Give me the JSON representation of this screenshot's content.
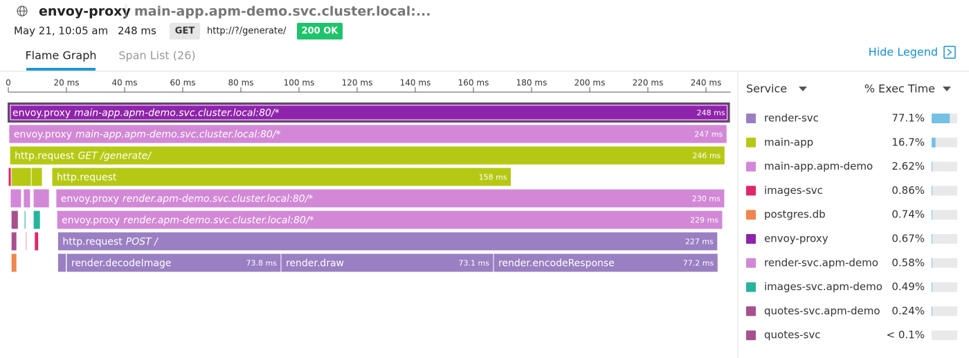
{
  "header": {
    "service": "envoy-proxy",
    "resource": "main-app.apm-demo.svc.cluster.local:...",
    "date": "May 21, 10:05 am",
    "duration": "248 ms",
    "method": "GET",
    "url": "http://?/generate/",
    "status": "200 OK"
  },
  "tabs": [
    "Flame Graph",
    "Span List (26)"
  ],
  "hide_legend": "Hide Legend",
  "flame_graph": {
    "xlim": [
      0,
      248
    ],
    "xticks": [
      {
        "value": 0,
        "label": "0"
      },
      {
        "value": 20,
        "label": "20 ms"
      },
      {
        "value": 40,
        "label": "40 ms"
      },
      {
        "value": 60,
        "label": "60 ms"
      },
      {
        "value": 80,
        "label": "80 ms"
      },
      {
        "value": 100,
        "label": "100 ms"
      },
      {
        "value": 120,
        "label": "120 ms"
      },
      {
        "value": 140,
        "label": "140 ms"
      },
      {
        "value": 160,
        "label": "160 ms"
      },
      {
        "value": 180,
        "label": "180 ms"
      },
      {
        "value": 200,
        "label": "200 ms"
      },
      {
        "value": 220,
        "label": "220 ms"
      },
      {
        "value": 240,
        "label": "240 ms"
      }
    ],
    "rows": [
      [
        {
          "name": "envoy.proxy",
          "resource": "main-app.apm-demo.svc.cluster.local:80/*",
          "start": 0,
          "duration": 248,
          "duration_label": "248 ms",
          "color": "#8e24aa",
          "selected": true
        }
      ],
      [
        {
          "name": "envoy.proxy",
          "resource": "main-app.apm-demo.svc.cluster.local:80/*",
          "start": 0.2,
          "duration": 247,
          "duration_label": "247 ms",
          "color": "#d288d6"
        }
      ],
      [
        {
          "name": "http.request",
          "resource": "GET /generate/",
          "start": 0.5,
          "duration": 246,
          "duration_label": "246 ms",
          "color": "#b5c914"
        }
      ],
      [
        {
          "start": 0,
          "duration": 1,
          "color": "#e0266a"
        },
        {
          "start": 1,
          "duration": 7.6,
          "color": "#b5c914"
        },
        {
          "start": 7.9,
          "duration": 3.8,
          "color": "#b5c914"
        },
        {
          "name": "http.request",
          "start": 15,
          "duration": 158,
          "duration_label": "158 ms",
          "color": "#b5c914"
        }
      ],
      [
        {
          "start": 0.7,
          "duration": 3.8,
          "color": "#d288d6"
        },
        {
          "start": 5.2,
          "duration": 2.4,
          "color": "#d288d6"
        },
        {
          "start": 8.6,
          "duration": 5.5,
          "color": "#d288d6"
        },
        {
          "name": "envoy.proxy",
          "resource": "render.apm-demo.svc.cluster.local:80/*",
          "start": 16.4,
          "duration": 230,
          "duration_label": "230 ms",
          "color": "#d288d6"
        }
      ],
      [
        {
          "start": 1,
          "duration": 2.4,
          "color": "#a6508e"
        },
        {
          "start": 5.5,
          "duration": 0.5,
          "color": "#26b59b"
        },
        {
          "start": 8.6,
          "duration": 2.4,
          "color": "#26b59b"
        },
        {
          "name": "envoy.proxy",
          "resource": "render.apm-demo.svc.cluster.local:80/*",
          "start": 16.7,
          "duration": 229,
          "duration_label": "229 ms",
          "color": "#d288d6"
        }
      ],
      [
        {
          "start": 1,
          "duration": 1.9,
          "color": "#a6508e"
        },
        {
          "start": 6,
          "duration": 0.3,
          "color": "#e0266a"
        },
        {
          "start": 9,
          "duration": 1.4,
          "color": "#e0266a"
        },
        {
          "name": "http.request",
          "resource": "POST /",
          "start": 17,
          "duration": 227,
          "duration_label": "227 ms",
          "color": "#9a7fc2"
        }
      ],
      [
        {
          "start": 1,
          "duration": 1.9,
          "color": "#f0854e"
        },
        {
          "start": 17,
          "duration": 2.9,
          "color": "#9a7fc2"
        },
        {
          "name": "render.decodeImage",
          "start": 20,
          "duration": 73.8,
          "duration_label": "73.8 ms",
          "color": "#9a7fc2"
        },
        {
          "name": "render.draw",
          "start": 93.8,
          "duration": 73.1,
          "duration_label": "73.1 ms",
          "color": "#9a7fc2"
        },
        {
          "name": "render.encodeResponse",
          "start": 166.9,
          "duration": 77.2,
          "duration_label": "77.2 ms",
          "color": "#9a7fc2"
        }
      ]
    ]
  },
  "legend": {
    "columns": [
      "Service",
      "% Exec Time"
    ],
    "rows": [
      {
        "name": "render-svc",
        "color": "#9a7fc2",
        "pct": "77.1%",
        "value": 77.1
      },
      {
        "name": "main-app",
        "color": "#b5c914",
        "pct": "16.7%",
        "value": 16.7
      },
      {
        "name": "main-app.apm-demo",
        "color": "#d288d6",
        "pct": "2.62%",
        "value": 2.62
      },
      {
        "name": "images-svc",
        "color": "#e0266a",
        "pct": "0.86%",
        "value": 0.86
      },
      {
        "name": "postgres.db",
        "color": "#f0854e",
        "pct": "0.74%",
        "value": 0.74
      },
      {
        "name": "envoy-proxy",
        "color": "#8e24aa",
        "pct": "0.67%",
        "value": 0.67
      },
      {
        "name": "render-svc.apm-demo",
        "color": "#d288d6",
        "pct": "0.58%",
        "value": 0.58
      },
      {
        "name": "images-svc.apm-demo",
        "color": "#26b59b",
        "pct": "0.49%",
        "value": 0.49
      },
      {
        "name": "quotes-svc.apm-demo",
        "color": "#a6508e",
        "pct": "0.24%",
        "value": 0.24
      },
      {
        "name": "quotes-svc",
        "color": "#a6508e",
        "pct": "< 0.1%"
      }
    ]
  }
}
